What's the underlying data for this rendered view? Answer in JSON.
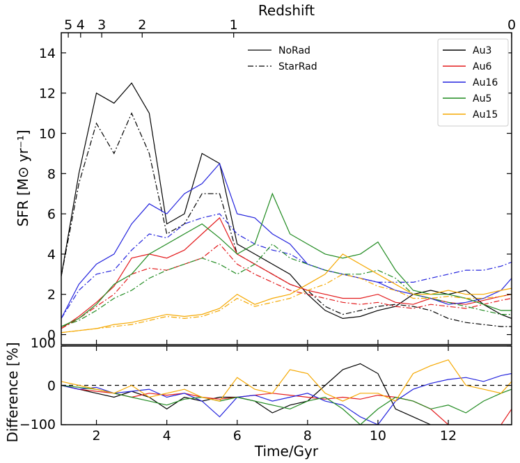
{
  "chart_data": [
    {
      "type": "line",
      "title": "",
      "top_axis": {
        "label": "Redshift",
        "ticks": [
          {
            "label": "5",
            "time": 1.2
          },
          {
            "label": "4",
            "time": 1.55
          },
          {
            "label": "3",
            "time": 2.15
          },
          {
            "label": "2",
            "time": 3.3
          },
          {
            "label": "1",
            "time": 5.9
          },
          {
            "label": "0",
            "time": 13.8
          }
        ]
      },
      "xlabel": "Time/Gyr",
      "ylabel": "SFR [M⊙ yr⁻¹]",
      "xlim": [
        1.0,
        13.8
      ],
      "ylim": [
        -0.5,
        15
      ],
      "x_ticks": [
        {
          "v": 2,
          "label": "2"
        },
        {
          "v": 4,
          "label": "4"
        },
        {
          "v": 6,
          "label": "6"
        },
        {
          "v": 8,
          "label": "8"
        },
        {
          "v": 10,
          "label": "10"
        },
        {
          "v": 12,
          "label": "12"
        }
      ],
      "y_ticks": [
        {
          "v": 0,
          "label": "0"
        },
        {
          "v": 2,
          "label": "2"
        },
        {
          "v": 4,
          "label": "4"
        },
        {
          "v": 6,
          "label": "6"
        },
        {
          "v": 8,
          "label": "8"
        },
        {
          "v": 10,
          "label": "10"
        },
        {
          "v": 12,
          "label": "12"
        },
        {
          "v": 14,
          "label": "14"
        }
      ],
      "linestyle_legend": {
        "position": "top-center",
        "entries": [
          {
            "label": "NoRad",
            "style": "solid"
          },
          {
            "label": "StarRad",
            "style": "dashdot"
          }
        ]
      },
      "halo_legend": {
        "position": "top-right",
        "entries": [
          {
            "label": "Au3",
            "color": "#000000"
          },
          {
            "label": "Au6",
            "color": "#e31a1c"
          },
          {
            "label": "Au16",
            "color": "#2222dd"
          },
          {
            "label": "Au5",
            "color": "#1f8a1f"
          },
          {
            "label": "Au15",
            "color": "#f5a800"
          }
        ]
      },
      "x": [
        1.0,
        1.5,
        2.0,
        2.5,
        3.0,
        3.5,
        4.0,
        4.5,
        5.0,
        5.5,
        6.0,
        6.5,
        7.0,
        7.5,
        8.0,
        8.5,
        9.0,
        9.5,
        10.0,
        10.5,
        11.0,
        11.5,
        12.0,
        12.5,
        13.0,
        13.5,
        13.8
      ],
      "series": [
        {
          "name": "Au3",
          "style": "solid",
          "color": "#000000",
          "values": [
            2.9,
            8.0,
            12.0,
            11.5,
            12.5,
            11.0,
            5.5,
            6.0,
            9.0,
            8.5,
            4.5,
            4.0,
            3.5,
            3.0,
            2.0,
            1.2,
            0.8,
            0.9,
            1.2,
            1.4,
            2.0,
            2.2,
            2.0,
            2.2,
            1.5,
            1.0,
            0.8
          ]
        },
        {
          "name": "Au3",
          "style": "dashdot",
          "color": "#000000",
          "values": [
            2.9,
            7.5,
            10.5,
            9.0,
            11.0,
            9.0,
            5.0,
            5.5,
            7.0,
            7.0,
            4.0,
            3.5,
            3.0,
            2.5,
            2.2,
            1.4,
            1.0,
            1.2,
            1.4,
            1.5,
            1.4,
            1.2,
            0.8,
            0.6,
            0.5,
            0.4,
            0.4
          ]
        },
        {
          "name": "Au6",
          "style": "solid",
          "color": "#e31a1c",
          "values": [
            0.3,
            0.9,
            1.6,
            2.4,
            3.8,
            4.0,
            3.8,
            4.2,
            5.0,
            5.8,
            4.0,
            3.5,
            3.0,
            2.5,
            2.2,
            2.0,
            1.8,
            1.8,
            2.0,
            1.6,
            1.5,
            1.8,
            1.6,
            1.5,
            1.7,
            1.9,
            2.0
          ]
        },
        {
          "name": "Au6",
          "style": "dashdot",
          "color": "#e31a1c",
          "values": [
            0.3,
            0.8,
            1.4,
            2.0,
            3.0,
            3.3,
            3.2,
            3.5,
            3.8,
            4.5,
            3.5,
            3.0,
            2.6,
            2.2,
            2.0,
            1.8,
            1.6,
            1.5,
            1.6,
            1.4,
            1.3,
            1.5,
            1.4,
            1.3,
            1.5,
            1.7,
            1.8
          ]
        },
        {
          "name": "Au16",
          "style": "solid",
          "color": "#2222dd",
          "values": [
            0.8,
            2.5,
            3.5,
            4.0,
            5.5,
            6.5,
            6.0,
            7.0,
            7.5,
            8.5,
            6.0,
            5.8,
            5.0,
            4.5,
            3.5,
            3.2,
            3.0,
            2.8,
            2.6,
            2.2,
            2.0,
            1.8,
            1.5,
            1.6,
            1.8,
            2.2,
            2.8
          ]
        },
        {
          "name": "Au16",
          "style": "dashdot",
          "color": "#2222dd",
          "values": [
            0.8,
            2.2,
            3.0,
            3.2,
            4.2,
            5.0,
            4.8,
            5.5,
            5.8,
            6.0,
            5.0,
            4.5,
            4.2,
            4.0,
            3.5,
            3.2,
            3.0,
            2.8,
            2.6,
            2.6,
            2.6,
            2.8,
            3.0,
            3.2,
            3.2,
            3.4,
            3.6
          ]
        },
        {
          "name": "Au5",
          "style": "solid",
          "color": "#1f8a1f",
          "values": [
            0.4,
            0.8,
            1.5,
            2.5,
            3.0,
            4.0,
            4.5,
            5.0,
            5.5,
            4.8,
            4.0,
            4.5,
            7.0,
            5.0,
            4.5,
            4.0,
            3.8,
            4.0,
            4.6,
            3.2,
            2.2,
            2.0,
            2.0,
            1.8,
            1.5,
            1.2,
            1.2
          ]
        },
        {
          "name": "Au5",
          "style": "dashdot",
          "color": "#1f8a1f",
          "values": [
            0.4,
            0.7,
            1.2,
            1.8,
            2.2,
            2.8,
            3.2,
            3.5,
            3.8,
            3.5,
            3.0,
            3.5,
            4.5,
            3.8,
            3.5,
            3.2,
            3.0,
            3.0,
            3.2,
            2.8,
            2.0,
            1.8,
            1.6,
            1.4,
            1.2,
            1.0,
            1.0
          ]
        },
        {
          "name": "Au15",
          "style": "solid",
          "color": "#f5a800",
          "values": [
            0.1,
            0.2,
            0.3,
            0.5,
            0.6,
            0.8,
            1.0,
            0.9,
            1.0,
            1.3,
            2.0,
            1.5,
            1.8,
            2.0,
            2.5,
            3.0,
            4.0,
            3.5,
            3.0,
            2.5,
            2.0,
            2.0,
            2.2,
            2.0,
            2.0,
            2.2,
            2.3
          ]
        },
        {
          "name": "Au15",
          "style": "dashdot",
          "color": "#f5a800",
          "values": [
            0.1,
            0.2,
            0.3,
            0.4,
            0.5,
            0.7,
            0.9,
            0.8,
            0.9,
            1.2,
            1.8,
            1.4,
            1.6,
            1.8,
            2.2,
            2.5,
            3.0,
            2.8,
            2.4,
            2.2,
            1.8,
            1.8,
            1.9,
            1.8,
            1.8,
            1.9,
            2.0
          ]
        }
      ]
    },
    {
      "type": "line",
      "title": "",
      "xlabel": "Time/Gyr",
      "ylabel": "Difference [%]",
      "xlim": [
        1.0,
        13.8
      ],
      "ylim": [
        -100,
        100
      ],
      "y_ticks": [
        {
          "v": -100,
          "label": "−100"
        },
        {
          "v": 0,
          "label": "0"
        },
        {
          "v": 100,
          "label": "100"
        }
      ],
      "zero_line": {
        "y": 0,
        "style": "dashed"
      },
      "x": [
        1.0,
        1.5,
        2.0,
        2.5,
        3.0,
        3.5,
        4.0,
        4.5,
        5.0,
        5.5,
        6.0,
        6.5,
        7.0,
        7.5,
        8.0,
        8.5,
        9.0,
        9.5,
        10.0,
        10.5,
        11.0,
        11.5,
        12.0,
        12.5,
        13.0,
        13.5,
        13.8
      ],
      "series": [
        {
          "name": "Au3",
          "color": "#000000",
          "values": [
            0,
            -10,
            -20,
            -30,
            -15,
            -30,
            -60,
            -30,
            -40,
            -30,
            -30,
            -40,
            -70,
            -50,
            -40,
            0,
            40,
            55,
            30,
            -60,
            -80,
            -100,
            -100,
            -100,
            -100,
            -100,
            -100
          ]
        },
        {
          "name": "Au6",
          "color": "#e31a1c",
          "values": [
            0,
            -10,
            -15,
            -20,
            -30,
            -20,
            -25,
            -20,
            -30,
            -35,
            -30,
            -25,
            -20,
            -25,
            -30,
            -35,
            -30,
            -35,
            -25,
            -30,
            -40,
            -60,
            -100,
            -100,
            -100,
            -100,
            -60
          ]
        },
        {
          "name": "Au16",
          "color": "#2222dd",
          "values": [
            0,
            -10,
            -5,
            -20,
            -15,
            -10,
            -30,
            -20,
            -40,
            -80,
            -30,
            -25,
            -40,
            -30,
            -20,
            -40,
            -50,
            -80,
            -100,
            -40,
            -10,
            5,
            15,
            20,
            10,
            25,
            30
          ]
        },
        {
          "name": "Au5",
          "color": "#1f8a1f",
          "values": [
            0,
            -5,
            -10,
            -20,
            -30,
            -40,
            -50,
            -35,
            -30,
            -40,
            -30,
            -40,
            -50,
            -60,
            -40,
            -30,
            -60,
            -100,
            -60,
            -30,
            -40,
            -60,
            -50,
            -70,
            -40,
            -20,
            -10
          ]
        },
        {
          "name": "Au15",
          "color": "#f5a800",
          "values": [
            10,
            0,
            -10,
            -20,
            0,
            -30,
            -20,
            -10,
            -30,
            -40,
            20,
            -10,
            -20,
            40,
            30,
            -20,
            -40,
            -20,
            -20,
            -40,
            30,
            50,
            65,
            0,
            -10,
            -20,
            10
          ]
        }
      ]
    }
  ]
}
